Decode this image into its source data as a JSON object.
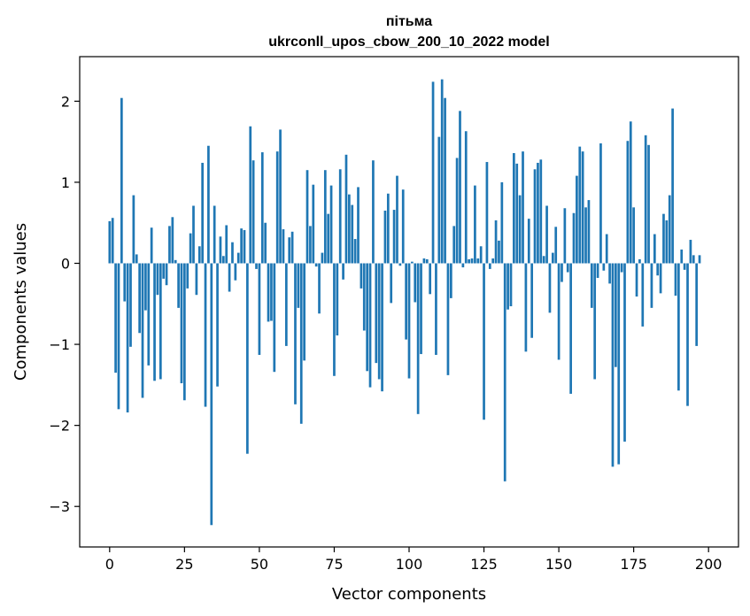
{
  "chart_data": {
    "type": "bar",
    "title": "пітьма",
    "subtitle": "ukrconll_upos_cbow_200_10_2022 model",
    "xlabel": "Vector components",
    "ylabel": "Components values",
    "xlim": [
      -10,
      210
    ],
    "ylim": [
      -3.5,
      2.55
    ],
    "xticks": [
      0,
      25,
      50,
      75,
      100,
      125,
      150,
      175,
      200
    ],
    "yticks": [
      -3,
      -2,
      -1,
      0,
      1,
      2
    ],
    "xtick_labels": [
      "0",
      "25",
      "50",
      "75",
      "100",
      "125",
      "150",
      "175",
      "200"
    ],
    "ytick_labels": [
      "−3",
      "−2",
      "−1",
      "0",
      "1",
      "2"
    ],
    "bar_color": "#1f77b4",
    "grid": false,
    "values": [
      0.52,
      0.56,
      -1.35,
      -1.8,
      2.04,
      -0.47,
      -1.84,
      -1.03,
      0.84,
      0.11,
      -0.86,
      -1.66,
      -0.58,
      -1.26,
      0.44,
      -1.45,
      -0.39,
      -1.43,
      -0.19,
      -0.27,
      0.46,
      0.57,
      0.04,
      -0.55,
      -1.48,
      -1.69,
      -0.31,
      0.37,
      0.71,
      -0.39,
      0.21,
      1.24,
      -1.77,
      1.45,
      -3.23,
      0.71,
      -1.52,
      0.33,
      0.09,
      0.47,
      -0.35,
      0.26,
      -0.21,
      0.13,
      0.43,
      0.41,
      -2.35,
      1.69,
      1.27,
      -0.07,
      -1.13,
      1.37,
      0.5,
      -0.72,
      -0.71,
      -1.34,
      1.38,
      1.65,
      0.42,
      -1.02,
      0.32,
      0.39,
      -1.74,
      -0.55,
      -1.98,
      -1.2,
      1.15,
      0.46,
      0.97,
      -0.04,
      -0.62,
      0.13,
      1.15,
      0.61,
      0.96,
      -1.39,
      -0.89,
      1.16,
      -0.2,
      1.34,
      0.85,
      0.72,
      0.3,
      0.94,
      -0.31,
      -0.83,
      -1.33,
      -1.53,
      1.27,
      -1.23,
      -1.43,
      -1.58,
      0.65,
      0.86,
      -0.49,
      0.66,
      1.08,
      -0.03,
      0.91,
      -0.94,
      -1.42,
      0.02,
      -0.48,
      -1.86,
      -1.12,
      0.06,
      0.05,
      -0.38,
      2.24,
      -1.13,
      1.56,
      2.27,
      2.04,
      -1.38,
      -0.43,
      0.46,
      1.3,
      1.88,
      -0.05,
      1.63,
      0.05,
      0.06,
      0.96,
      0.06,
      0.21,
      -1.93,
      1.25,
      -0.07,
      0.06,
      0.53,
      0.28,
      1.0,
      -2.69,
      -0.57,
      -0.53,
      1.36,
      1.23,
      0.84,
      1.38,
      -1.09,
      0.55,
      -0.92,
      1.16,
      1.24,
      1.28,
      0.09,
      0.71,
      -0.61,
      0.13,
      0.45,
      -1.19,
      -0.23,
      0.68,
      -0.11,
      -1.61,
      0.62,
      1.08,
      1.44,
      1.38,
      0.69,
      0.78,
      -0.55,
      -1.43,
      -0.18,
      1.48,
      -0.09,
      0.36,
      -0.25,
      -2.51,
      -1.28,
      -2.48,
      -0.11,
      -2.2,
      1.51,
      1.75,
      0.69,
      -0.41,
      0.05,
      -0.78,
      1.58,
      1.46,
      -0.55,
      0.36,
      -0.15,
      -0.37,
      0.61,
      0.53,
      0.84,
      1.91,
      -0.4,
      -1.57,
      0.17,
      -0.08,
      -1.76,
      0.29,
      0.1,
      -1.02,
      0.1
    ]
  }
}
